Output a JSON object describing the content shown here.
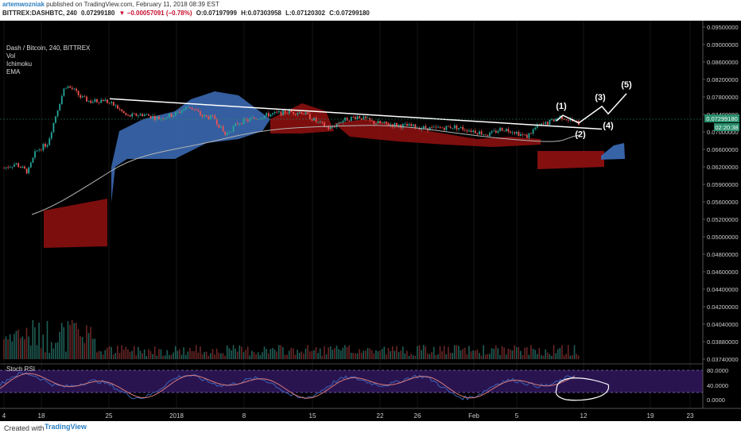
{
  "header": {
    "author": "artemwozniak",
    "published_text": "published on TradingView.com, February 11, 2018 08:39 EST",
    "symbol": "BITTREX:DASHBTC, 240",
    "last": "0.07299180",
    "change": "▼ −0.00057091 (−0.78%)",
    "open": "O:0.07197999",
    "high": "H:0.07303958",
    "low": "L:0.07120302",
    "close": "C:0.07299180"
  },
  "legend": {
    "title": "Dash / Bitcoin, 240, BITTREX",
    "items": [
      "Vol",
      "Ichimoku",
      "EMA"
    ]
  },
  "colors": {
    "background": "#000000",
    "candle_up": "#26a69a",
    "candle_down": "#ef5350",
    "kumo_bull": "#3a68b0",
    "kumo_bear": "#8b1010",
    "ema": "#b5b5b5",
    "trendline": "#ffffff",
    "stoch_k": "#3d63b8",
    "stoch_d": "#d87b7b",
    "stoch_band": "#2a1450",
    "price_label_bg": "#2a8f6e"
  },
  "chart_data": {
    "type": "candlestick",
    "title": "Dash / Bitcoin, 240, BITTREX",
    "price_axis": {
      "ticks": [
        "0.09500000",
        "0.09000000",
        "0.08600000",
        "0.08200000",
        "0.07800000",
        "0.07400000",
        "0.07000000",
        "0.06600000",
        "0.06200000",
        "0.05900000",
        "0.05600000",
        "0.05200000",
        "0.05000000",
        "0.04800000",
        "0.04600000",
        "0.04400000",
        "0.04200000",
        "0.04040000",
        "0.03880000",
        "0.03740000"
      ],
      "last_price_label": "0.07299180",
      "countdown_label": "02:20:38"
    },
    "time_axis": {
      "labels": [
        "4",
        "18",
        "25",
        "2018",
        "8",
        "15",
        "22",
        "26",
        "Feb",
        "5",
        "12",
        "19",
        "23"
      ]
    },
    "trendline": {
      "from": {
        "date": "2017-12-25",
        "price": 0.0835
      },
      "to": {
        "date": "2018-02-14",
        "price": 0.0688
      }
    },
    "elliott_wave": {
      "labels": [
        "(1)",
        "(2)",
        "(3)",
        "(4)",
        "(5)"
      ],
      "points": [
        {
          "label": "(1)",
          "price": 0.0755
        },
        {
          "label": "(2)",
          "price": 0.0718
        },
        {
          "label": "(3)",
          "price": 0.0798
        },
        {
          "label": "(4)",
          "price": 0.0762
        },
        {
          "label": "(5)",
          "price": 0.086
        }
      ]
    },
    "stoch_rsi": {
      "title": "Stoch RSI",
      "levels": [
        "80.0000",
        "40.0000",
        "0.0000"
      ],
      "band": [
        20,
        80
      ]
    }
  },
  "footer": {
    "created_with": "Created with",
    "brand": "TradingView"
  }
}
